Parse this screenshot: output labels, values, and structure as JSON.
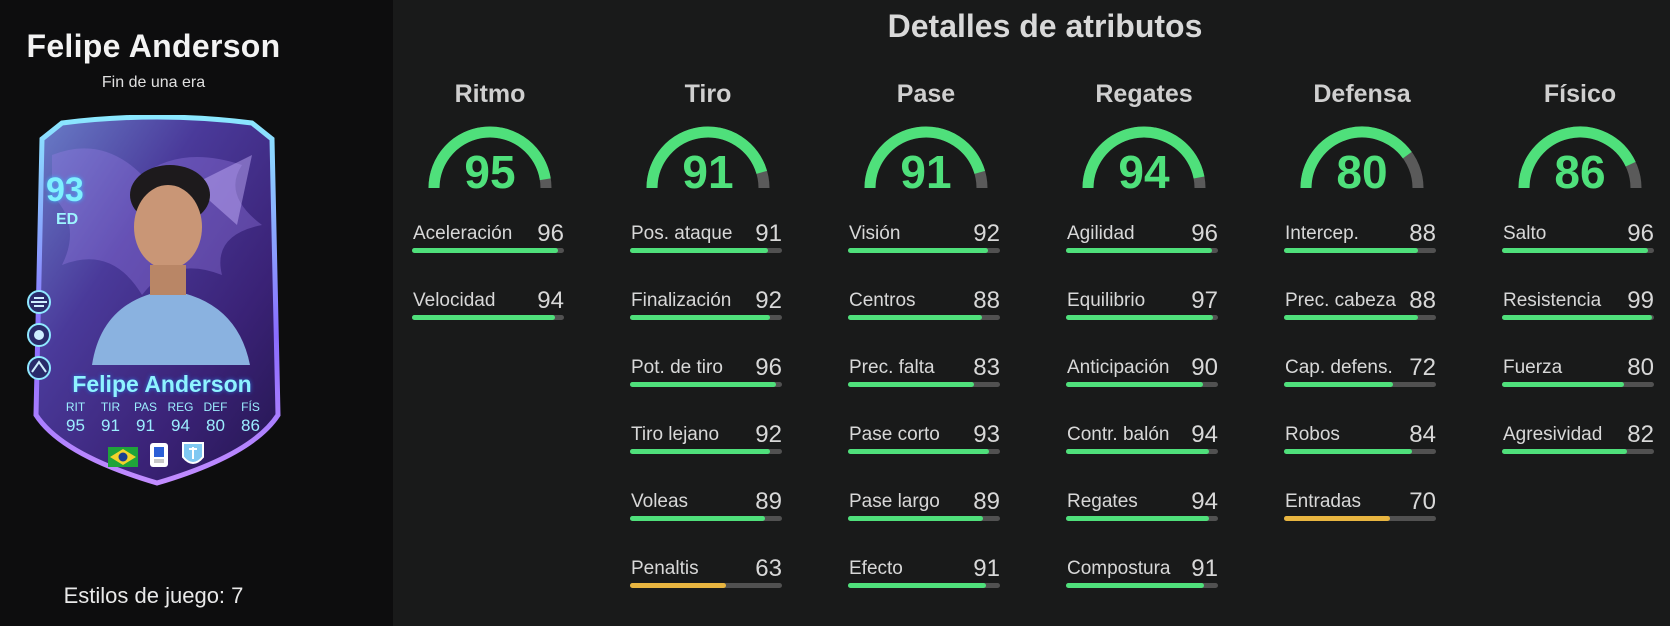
{
  "player": {
    "name": "Felipe Anderson",
    "subtitle": "Fin de una era",
    "card": {
      "rating": "93",
      "position": "ED",
      "name": "Felipe Anderson",
      "stats": [
        {
          "label": "RIT",
          "value": "95"
        },
        {
          "label": "TIR",
          "value": "91"
        },
        {
          "label": "PAS",
          "value": "91"
        },
        {
          "label": "REG",
          "value": "94"
        },
        {
          "label": "DEF",
          "value": "80"
        },
        {
          "label": "FÍS",
          "value": "86"
        }
      ]
    },
    "playstyles_label": "Estilos de juego: 7"
  },
  "main": {
    "title": "Detalles de atributos",
    "categories": [
      {
        "name": "Ritmo",
        "value": 95,
        "attributes": [
          {
            "name": "Aceleración",
            "value": 96
          },
          {
            "name": "Velocidad",
            "value": 94
          }
        ]
      },
      {
        "name": "Tiro",
        "value": 91,
        "attributes": [
          {
            "name": "Pos. ataque",
            "value": 91
          },
          {
            "name": "Finalización",
            "value": 92
          },
          {
            "name": "Pot. de tiro",
            "value": 96
          },
          {
            "name": "Tiro lejano",
            "value": 92
          },
          {
            "name": "Voleas",
            "value": 89
          },
          {
            "name": "Penaltis",
            "value": 63
          }
        ]
      },
      {
        "name": "Pase",
        "value": 91,
        "attributes": [
          {
            "name": "Visión",
            "value": 92
          },
          {
            "name": "Centros",
            "value": 88
          },
          {
            "name": "Prec. falta",
            "value": 83
          },
          {
            "name": "Pase corto",
            "value": 93
          },
          {
            "name": "Pase largo",
            "value": 89
          },
          {
            "name": "Efecto",
            "value": 91
          }
        ]
      },
      {
        "name": "Regates",
        "value": 94,
        "attributes": [
          {
            "name": "Agilidad",
            "value": 96
          },
          {
            "name": "Equilibrio",
            "value": 97
          },
          {
            "name": "Anticipación",
            "value": 90
          },
          {
            "name": "Contr. balón",
            "value": 94
          },
          {
            "name": "Regates",
            "value": 94
          },
          {
            "name": "Compostura",
            "value": 91
          }
        ]
      },
      {
        "name": "Defensa",
        "value": 80,
        "attributes": [
          {
            "name": "Intercep.",
            "value": 88
          },
          {
            "name": "Prec. cabeza",
            "value": 88
          },
          {
            "name": "Cap. defens.",
            "value": 72
          },
          {
            "name": "Robos",
            "value": 84
          },
          {
            "name": "Entradas",
            "value": 70
          }
        ]
      },
      {
        "name": "Físico",
        "value": 86,
        "attributes": [
          {
            "name": "Salto",
            "value": 96
          },
          {
            "name": "Resistencia",
            "value": 99
          },
          {
            "name": "Fuerza",
            "value": 80
          },
          {
            "name": "Agresividad",
            "value": 82
          }
        ]
      }
    ]
  },
  "colors": {
    "high": "#4fe07b",
    "mid": "#e8b540",
    "track": "#515151"
  }
}
